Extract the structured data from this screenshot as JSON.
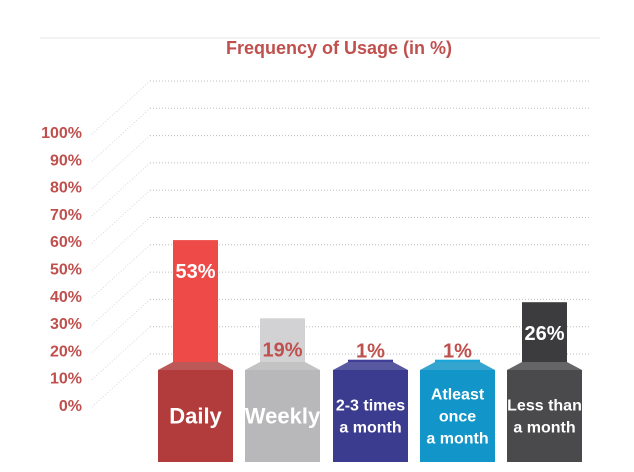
{
  "chart_data": {
    "type": "bar",
    "title": "Frequency of Usage (in %)",
    "categories": [
      [
        "Daily"
      ],
      [
        "Weekly"
      ],
      [
        "2-3 times",
        "a month"
      ],
      [
        "Atleast",
        "once",
        "a month"
      ],
      [
        "Less than",
        "a month"
      ]
    ],
    "values": [
      53,
      19,
      1,
      1,
      26
    ],
    "value_labels": [
      "53%",
      "19%",
      "1%",
      "1%",
      "26%"
    ],
    "yticks": [
      "0%",
      "10%",
      "20%",
      "30%",
      "40%",
      "50%",
      "60%",
      "70%",
      "80%",
      "90%",
      "100%"
    ],
    "ylim": [
      0,
      100
    ],
    "grid": true,
    "colors": {
      "bar_tops": [
        "#ee4a47",
        "#d2d2d4",
        "#3f3f97",
        "#1aa6d8",
        "#3c3c3e"
      ],
      "bar_bases": [
        "#b23b3b",
        "#b8b8ba",
        "#3b3b8f",
        "#1295c8",
        "#4a4a4c"
      ],
      "value_label_colors": [
        "#ffffff",
        "#c0504d",
        "#c0504d",
        "#c0504d",
        "#ffffff"
      ],
      "axis_text": "#c0504d"
    }
  }
}
